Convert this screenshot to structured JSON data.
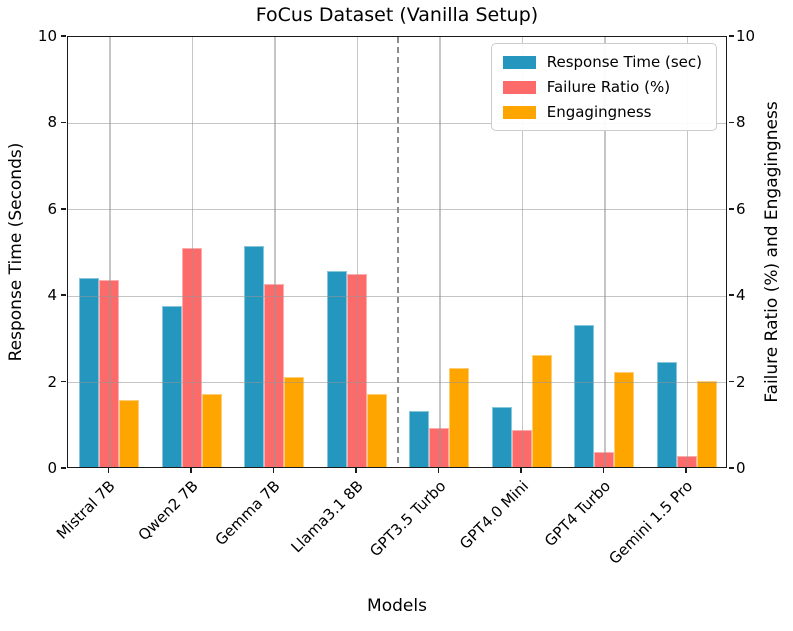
{
  "chart_data": {
    "type": "bar",
    "title": "FoCus Dataset (Vanilla Setup)",
    "xlabel": "Models",
    "ylabel_left": "Response Time (Seconds)",
    "ylabel_right": "Failure Ratio (%) and Engagingness",
    "categories": [
      "Mistral 7B",
      "Qwen2 7B",
      "Gemma 7B",
      "Llama3.1 8B",
      "GPT3.5 Turbo",
      "GPT4.0 Mini",
      "GPT4 Turbo",
      "Gemini 1.5 Pro"
    ],
    "series": [
      {
        "name": "Response Time (sec)",
        "color": "#2596BE",
        "values": [
          4.4,
          3.75,
          5.15,
          4.55,
          1.3,
          1.4,
          3.3,
          2.45
        ]
      },
      {
        "name": "Failure Ratio (%)",
        "color": "#FC6A6A",
        "values": [
          4.35,
          5.1,
          4.25,
          4.5,
          0.9,
          0.85,
          0.35,
          0.25
        ]
      },
      {
        "name": "Engagingness",
        "color": "#FFA500",
        "values": [
          1.55,
          1.7,
          2.1,
          1.7,
          2.3,
          2.6,
          2.2,
          2.0
        ]
      }
    ],
    "ylim": [
      0,
      10
    ],
    "yticks": [
      0,
      2,
      4,
      6,
      8,
      10
    ],
    "grid": true,
    "legend_position": "upper right",
    "separator": {
      "after_index": 3,
      "color": "#8c8c8c",
      "style": "dashed"
    }
  }
}
